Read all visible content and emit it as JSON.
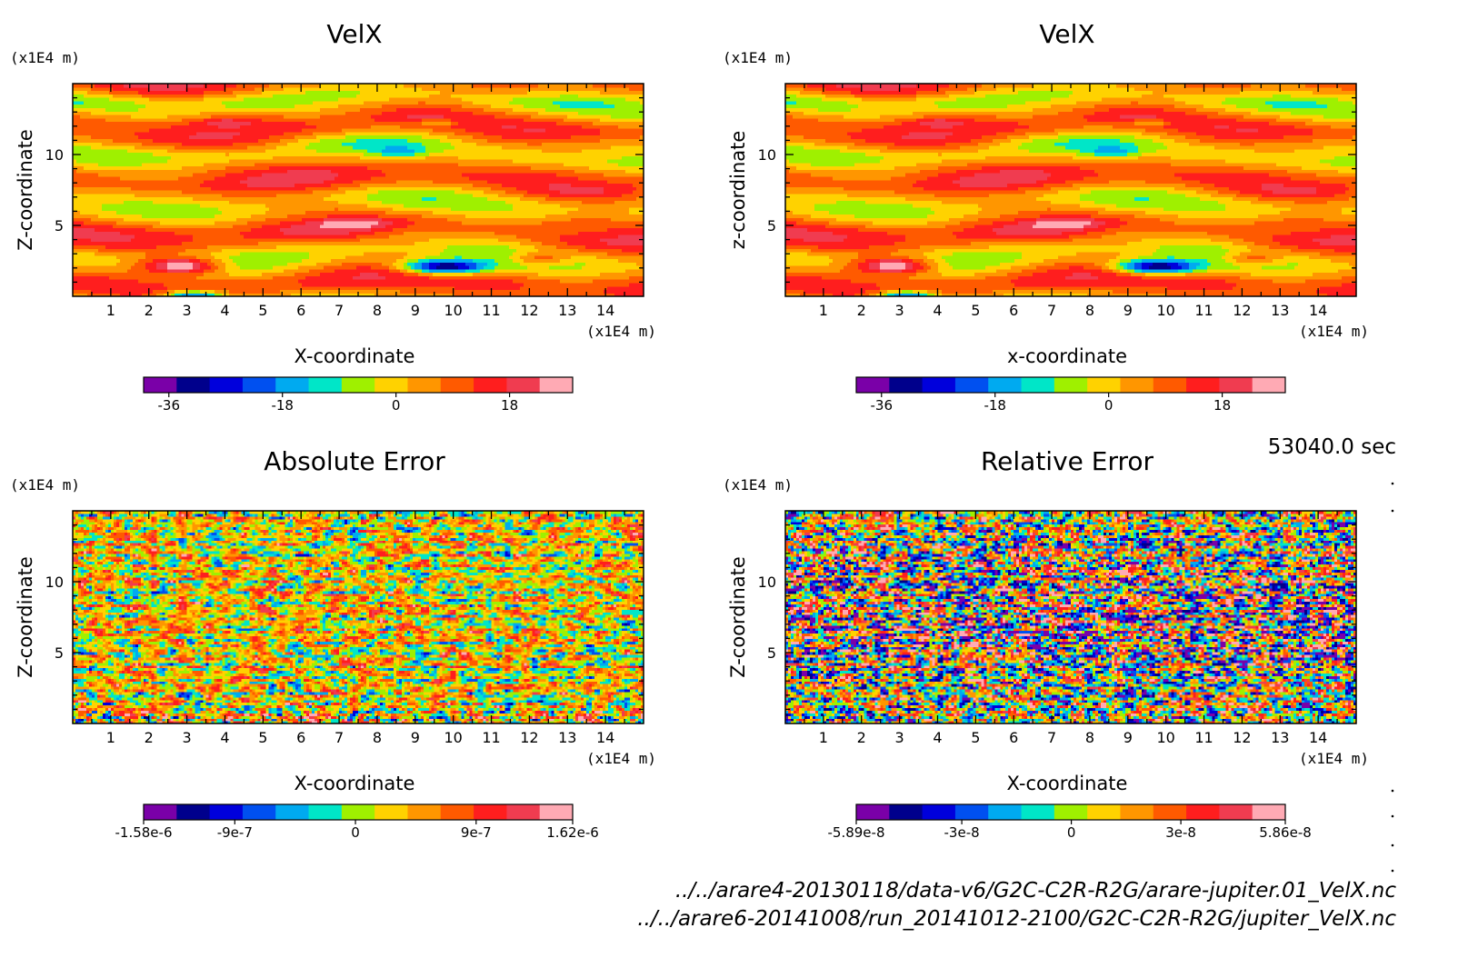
{
  "chart_data": [
    {
      "type": "heatmap",
      "title": "VelX",
      "unit_y": "(x1E4 m)",
      "unit_x": "(x1E4 m)",
      "xlabel": "X-coordinate",
      "ylabel": "Z-coordinate",
      "xlim": [
        0,
        15
      ],
      "ylim": [
        0,
        15
      ],
      "x_ticks": [
        "1",
        "2",
        "3",
        "4",
        "5",
        "6",
        "7",
        "8",
        "9",
        "10",
        "11",
        "12",
        "13",
        "14"
      ],
      "y_ticks": [
        "5",
        "10"
      ],
      "field": "velx",
      "colorbar": {
        "min": -40,
        "max": 28,
        "colors": [
          "#7a00a8",
          "#00008c",
          "#0000dc",
          "#0050f0",
          "#00aaf0",
          "#00e6c8",
          "#9ff000",
          "#ffd200",
          "#ff9600",
          "#ff5a00",
          "#ff1e1e",
          "#f03c50",
          "#ffaab4"
        ],
        "ticks": [
          {
            "v": -36,
            "label": "-36"
          },
          {
            "v": -18,
            "label": "-18"
          },
          {
            "v": 0,
            "label": "0"
          },
          {
            "v": 18,
            "label": "18"
          }
        ]
      }
    },
    {
      "type": "heatmap",
      "title": "VelX",
      "unit_y": "(x1E4 m)",
      "unit_x": "(x1E4 m)",
      "xlabel": "x-coordinate",
      "ylabel": "z-coordinate",
      "xlim": [
        0,
        15
      ],
      "ylim": [
        0,
        15
      ],
      "x_ticks": [
        "1",
        "2",
        "3",
        "4",
        "5",
        "6",
        "7",
        "8",
        "9",
        "10",
        "11",
        "12",
        "13",
        "14"
      ],
      "y_ticks": [
        "5",
        "10"
      ],
      "field": "velx",
      "colorbar": {
        "min": -40,
        "max": 28,
        "colors": [
          "#7a00a8",
          "#00008c",
          "#0000dc",
          "#0050f0",
          "#00aaf0",
          "#00e6c8",
          "#9ff000",
          "#ffd200",
          "#ff9600",
          "#ff5a00",
          "#ff1e1e",
          "#f03c50",
          "#ffaab4"
        ],
        "ticks": [
          {
            "v": -36,
            "label": "-36"
          },
          {
            "v": -18,
            "label": "-18"
          },
          {
            "v": 0,
            "label": "0"
          },
          {
            "v": 18,
            "label": "18"
          }
        ]
      }
    },
    {
      "type": "heatmap",
      "title": "Absolute Error",
      "unit_y": "(x1E4 m)",
      "unit_x": "(x1E4 m)",
      "xlabel": "X-coordinate",
      "ylabel": "Z-coordinate",
      "xlim": [
        0,
        15
      ],
      "ylim": [
        0,
        15
      ],
      "x_ticks": [
        "1",
        "2",
        "3",
        "4",
        "5",
        "6",
        "7",
        "8",
        "9",
        "10",
        "11",
        "12",
        "13",
        "14"
      ],
      "y_ticks": [
        "5",
        "10"
      ],
      "field": "abserr",
      "colorbar": {
        "min": -1.58e-06,
        "max": 1.62e-06,
        "colors": [
          "#7a00a8",
          "#00008c",
          "#0000dc",
          "#0050f0",
          "#00aaf0",
          "#00e6c8",
          "#9ff000",
          "#ffd200",
          "#ff9600",
          "#ff5a00",
          "#ff1e1e",
          "#f03c50",
          "#ffaab4"
        ],
        "ticks": [
          {
            "v": -1.58e-06,
            "label": "-1.58e-6"
          },
          {
            "v": -9e-07,
            "label": "-9e-7"
          },
          {
            "v": 0,
            "label": "0"
          },
          {
            "v": 9e-07,
            "label": "9e-7"
          },
          {
            "v": 1.62e-06,
            "label": "1.62e-6"
          }
        ]
      }
    },
    {
      "type": "heatmap",
      "title": "Relative Error",
      "unit_y": "(x1E4 m)",
      "unit_x": "(x1E4 m)",
      "xlabel": "X-coordinate",
      "ylabel": "Z-coordinate",
      "xlim": [
        0,
        15
      ],
      "ylim": [
        0,
        15
      ],
      "x_ticks": [
        "1",
        "2",
        "3",
        "4",
        "5",
        "6",
        "7",
        "8",
        "9",
        "10",
        "11",
        "12",
        "13",
        "14"
      ],
      "y_ticks": [
        "5",
        "10"
      ],
      "field": "relerr",
      "colorbar": {
        "min": -5.89e-08,
        "max": 5.86e-08,
        "colors": [
          "#7a00a8",
          "#00008c",
          "#0000dc",
          "#0050f0",
          "#00aaf0",
          "#00e6c8",
          "#9ff000",
          "#ffd200",
          "#ff9600",
          "#ff5a00",
          "#ff1e1e",
          "#f03c50",
          "#ffaab4"
        ],
        "ticks": [
          {
            "v": -5.89e-08,
            "label": "-5.89e-8"
          },
          {
            "v": -3e-08,
            "label": "-3e-8"
          },
          {
            "v": 0,
            "label": "0"
          },
          {
            "v": 3e-08,
            "label": "3e-8"
          },
          {
            "v": 5.86e-08,
            "label": "5.86e-8"
          }
        ]
      }
    }
  ],
  "time_label": "53040.0 sec",
  "files": [
    "../../arare4-20130118/data-v6/G2C-C2R-R2G/arare-jupiter.01_VelX.nc",
    "../../arare6-20141008/run_20141012-2100/G2C-C2R-R2G/jupiter_VelX.nc"
  ]
}
